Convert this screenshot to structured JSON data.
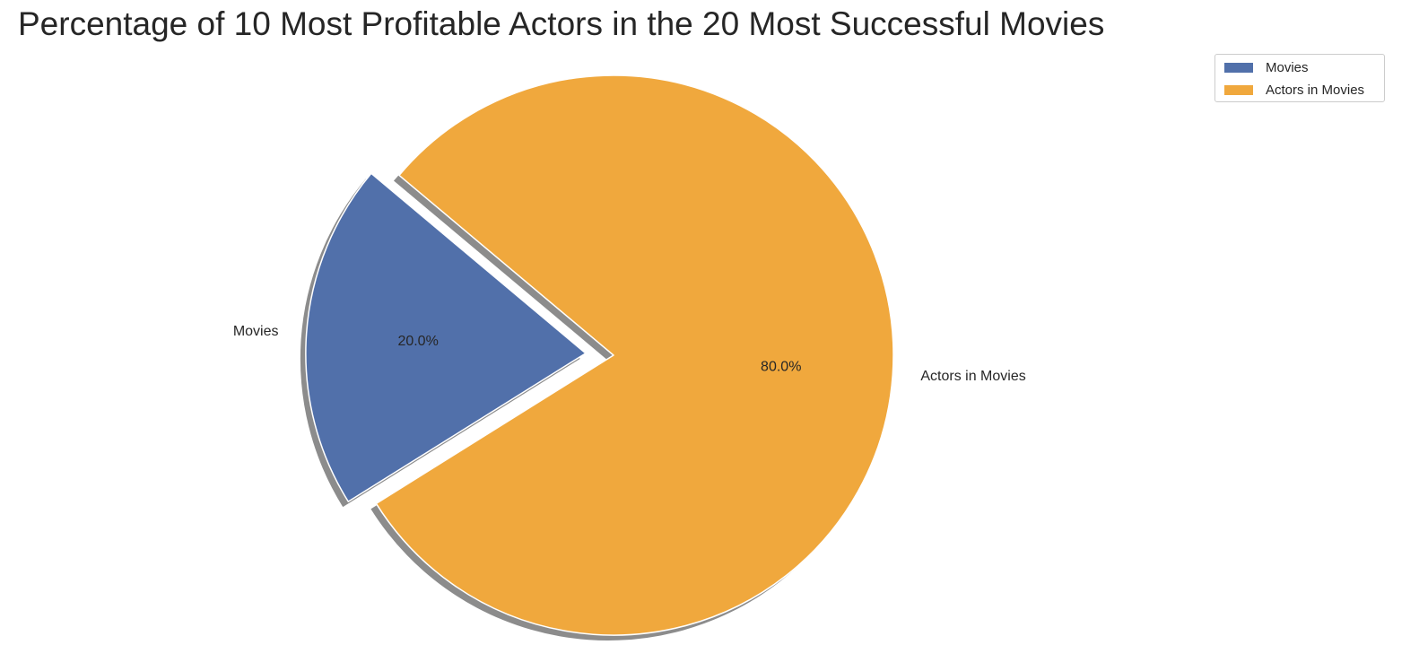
{
  "chart_data": {
    "type": "pie",
    "title": "Percentage of 10 Most Profitable Actors in the 20 Most Successful Movies",
    "slices": [
      {
        "label": "Movies",
        "value": 20.0,
        "pct_label": "20.0%",
        "color": "#5170AA",
        "exploded": true
      },
      {
        "label": "Actors in Movies",
        "value": 80.0,
        "pct_label": "80.0%",
        "color": "#F0A83D",
        "exploded": false
      }
    ],
    "shadow": true,
    "legend": {
      "placement": "top-right",
      "entries": [
        "Movies",
        "Actors in Movies"
      ]
    }
  }
}
